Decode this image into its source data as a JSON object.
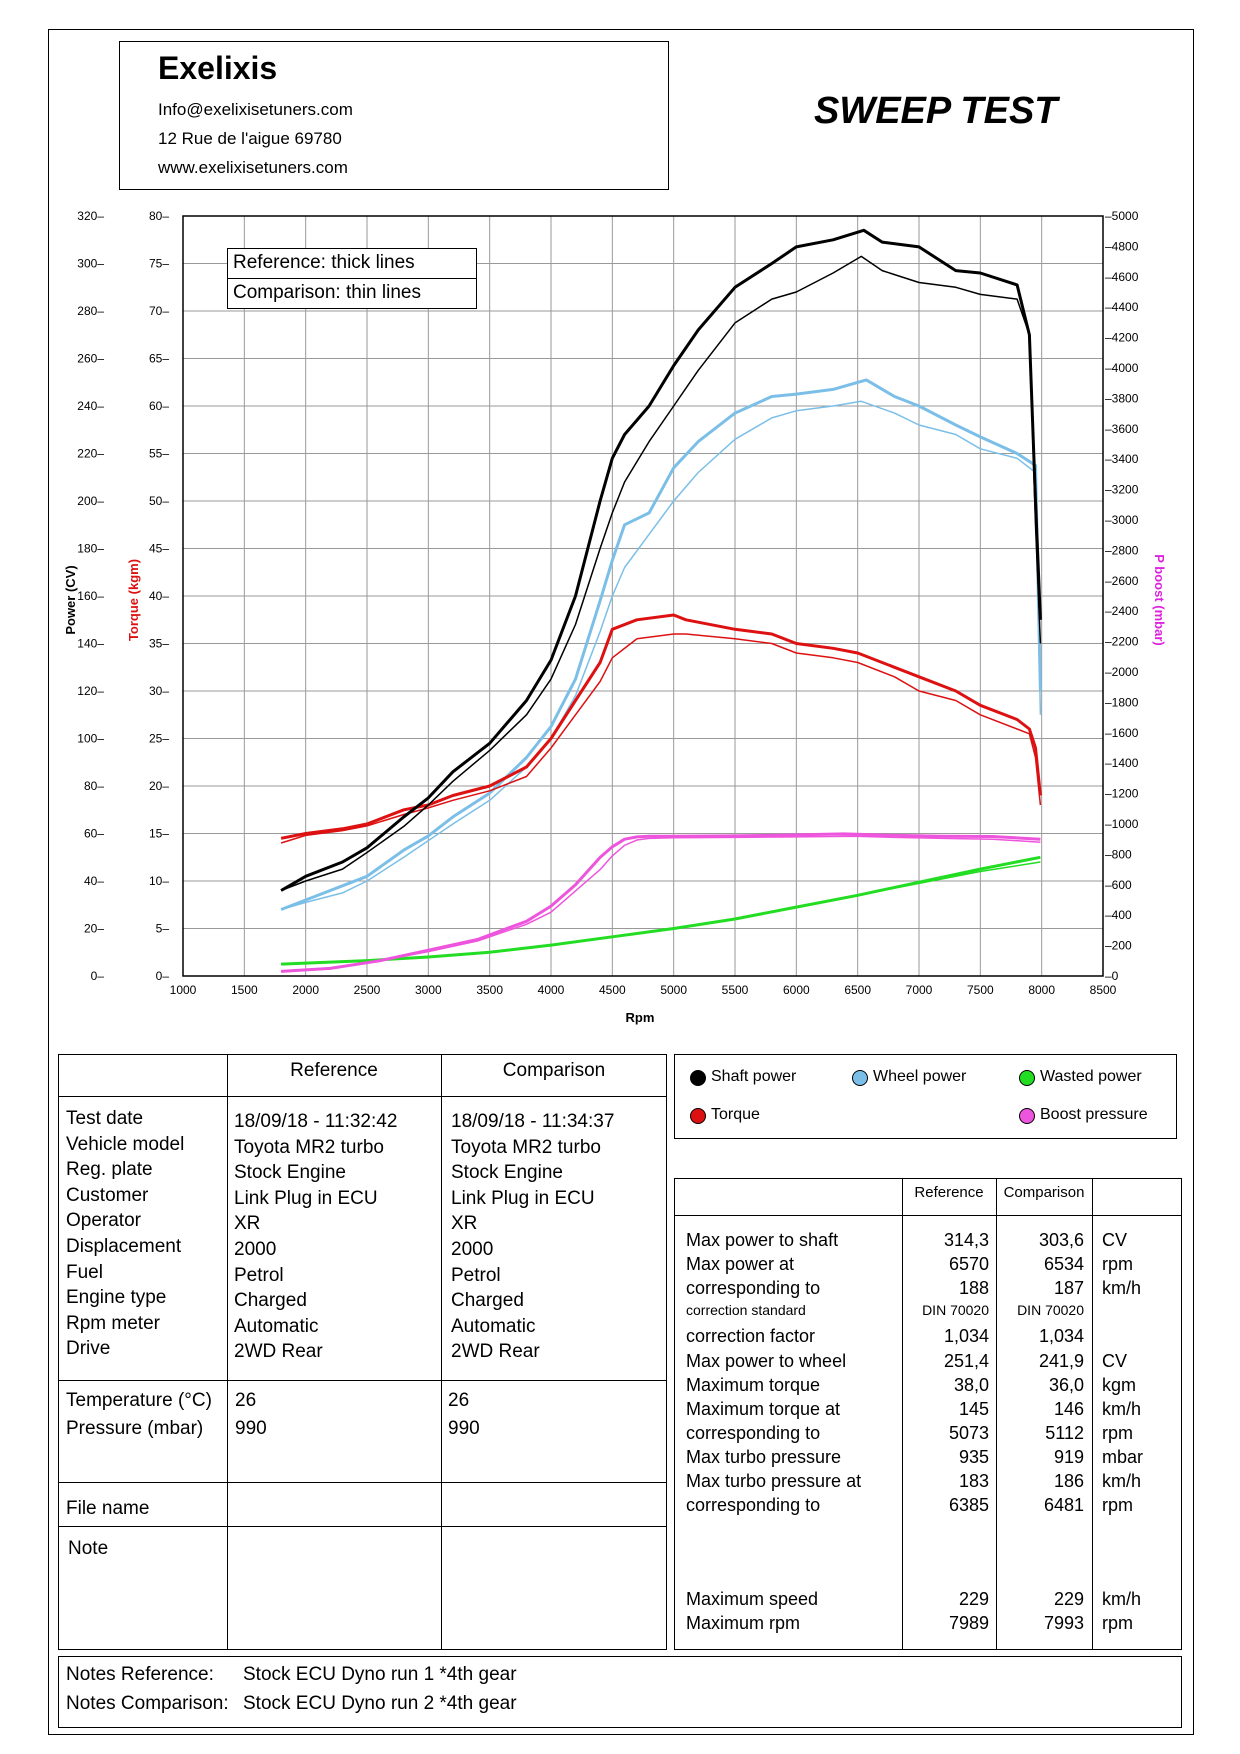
{
  "header": {
    "company": "Exelixis",
    "email": "Info@exelixisetuners.com",
    "address": "12 Rue de l'aigue 69780",
    "website": "www.exelixisetuners.com",
    "title": "SWEEP TEST"
  },
  "chart_legend": {
    "reference": "Reference: thick lines",
    "comparison": "Comparison: thin lines"
  },
  "colors": {
    "shaft": "#000000",
    "wheel": "#7bbfe8",
    "wasted": "#22dd22",
    "torque": "#dd1111",
    "boost": "#ee55dd"
  },
  "chart_data": {
    "type": "line",
    "xlabel": "Rpm",
    "y_left_outer_label": "Power (CV)",
    "y_left_inner_label": "Torque (kgm)",
    "y_right_label": "P boost (mbar)",
    "xlim": [
      1000,
      8500
    ],
    "power_ylim": [
      0,
      320
    ],
    "torque_ylim": [
      0,
      80
    ],
    "boost_ylim": [
      0,
      5000
    ],
    "x_ticks": [
      "1000",
      "1500",
      "2000",
      "2500",
      "3000",
      "3500",
      "4000",
      "4500",
      "5000",
      "5500",
      "6000",
      "6500",
      "7000",
      "7500",
      "8000",
      "8500"
    ],
    "power_ticks": [
      "0",
      "20",
      "40",
      "60",
      "80",
      "100",
      "120",
      "140",
      "160",
      "180",
      "200",
      "220",
      "240",
      "260",
      "280",
      "300",
      "320"
    ],
    "torque_ticks": [
      "0",
      "5",
      "10",
      "15",
      "20",
      "25",
      "30",
      "35",
      "40",
      "45",
      "50",
      "55",
      "60",
      "65",
      "70",
      "75",
      "80"
    ],
    "boost_ticks": [
      "0",
      "200",
      "400",
      "600",
      "800",
      "1000",
      "1200",
      "1400",
      "1600",
      "1800",
      "2000",
      "2200",
      "2400",
      "2600",
      "2800",
      "3000",
      "3200",
      "3400",
      "3600",
      "3800",
      "4000",
      "4200",
      "4400",
      "4600",
      "4800",
      "5000"
    ],
    "series": [
      {
        "name": "Shaft power",
        "key": "shaft",
        "axis": "power",
        "run": "reference",
        "x": [
          1800,
          2000,
          2300,
          2500,
          2800,
          3000,
          3200,
          3500,
          3800,
          4000,
          4200,
          4400,
          4500,
          4600,
          4800,
          5000,
          5200,
          5500,
          5800,
          6000,
          6300,
          6550,
          6700,
          7000,
          7300,
          7500,
          7800,
          7900,
          7950,
          7990
        ],
        "y": [
          36,
          42,
          48,
          54,
          67,
          75,
          86,
          98,
          116,
          133,
          160,
          200,
          218,
          228,
          240,
          257,
          272,
          290,
          300,
          307,
          310,
          314,
          309,
          307,
          297,
          296,
          291,
          270,
          200,
          150
        ]
      },
      {
        "name": "Shaft power",
        "key": "shaft",
        "axis": "power",
        "run": "comparison",
        "x": [
          1800,
          2000,
          2300,
          2500,
          2800,
          3000,
          3200,
          3500,
          3800,
          4000,
          4200,
          4400,
          4500,
          4600,
          4800,
          5000,
          5200,
          5500,
          5800,
          6000,
          6300,
          6530,
          6700,
          7000,
          7300,
          7500,
          7800,
          7900,
          7950,
          7990
        ],
        "y": [
          36,
          40,
          45,
          52,
          63,
          72,
          82,
          95,
          110,
          125,
          148,
          180,
          195,
          208,
          225,
          240,
          255,
          275,
          285,
          288,
          296,
          303,
          297,
          292,
          290,
          287,
          285,
          270,
          190,
          140
        ]
      },
      {
        "name": "Wheel power",
        "key": "wheel",
        "axis": "power",
        "run": "reference",
        "x": [
          1800,
          2000,
          2300,
          2500,
          2800,
          3000,
          3200,
          3500,
          3800,
          4000,
          4200,
          4400,
          4500,
          4600,
          4800,
          5000,
          5200,
          5500,
          5800,
          6000,
          6300,
          6570,
          6800,
          7000,
          7300,
          7500,
          7800,
          7950,
          7990
        ],
        "y": [
          28,
          32,
          38,
          42,
          53,
          59,
          67,
          77,
          92,
          105,
          125,
          158,
          175,
          190,
          195,
          214,
          225,
          237,
          244,
          245,
          247,
          251,
          244,
          240,
          232,
          227,
          220,
          215,
          120
        ]
      },
      {
        "name": "Wheel power",
        "key": "wheel",
        "axis": "power",
        "run": "comparison",
        "x": [
          1800,
          2000,
          2300,
          2500,
          2800,
          3000,
          3200,
          3500,
          3800,
          4000,
          4200,
          4400,
          4500,
          4600,
          4800,
          5000,
          5200,
          5500,
          5800,
          6000,
          6300,
          6530,
          6800,
          7000,
          7300,
          7500,
          7800,
          7950,
          7990
        ],
        "y": [
          28,
          31,
          35,
          40,
          50,
          57,
          64,
          74,
          88,
          100,
          118,
          145,
          160,
          172,
          186,
          200,
          212,
          226,
          235,
          238,
          240,
          242,
          237,
          232,
          228,
          222,
          218,
          212,
          110
        ]
      },
      {
        "name": "Torque",
        "key": "torque",
        "axis": "torque",
        "run": "reference",
        "x": [
          1800,
          2000,
          2300,
          2500,
          2800,
          3000,
          3200,
          3500,
          3800,
          4000,
          4200,
          4400,
          4500,
          4700,
          5000,
          5100,
          5500,
          5800,
          6000,
          6300,
          6500,
          6800,
          7000,
          7300,
          7500,
          7800,
          7900,
          7950,
          7990
        ],
        "y": [
          14.5,
          15,
          15.5,
          16,
          17.5,
          18,
          19,
          20,
          22,
          25,
          29,
          33,
          36.5,
          37.5,
          38,
          37.5,
          36.5,
          36,
          35,
          34.5,
          34,
          32.5,
          31.5,
          30,
          28.5,
          27,
          26,
          24,
          19
        ]
      },
      {
        "name": "Torque",
        "key": "torque",
        "axis": "torque",
        "run": "comparison",
        "x": [
          1800,
          2000,
          2300,
          2500,
          2800,
          3000,
          3200,
          3500,
          3800,
          4000,
          4200,
          4400,
          4500,
          4700,
          5000,
          5100,
          5500,
          5800,
          6000,
          6300,
          6500,
          6800,
          7000,
          7300,
          7500,
          7800,
          7900,
          7950,
          7990
        ],
        "y": [
          14,
          14.8,
          15.3,
          15.8,
          17,
          17.7,
          18.5,
          19.5,
          21,
          24,
          27.5,
          31,
          33.5,
          35.5,
          36,
          36,
          35.5,
          35,
          34,
          33.5,
          33,
          31.5,
          30,
          29,
          27.5,
          26,
          25.5,
          23,
          18
        ]
      },
      {
        "name": "Wasted power",
        "key": "wasted",
        "axis": "power",
        "run": "reference",
        "x": [
          1800,
          2500,
          3000,
          3500,
          4000,
          4500,
          5000,
          5500,
          6000,
          6500,
          7000,
          7500,
          7990
        ],
        "y": [
          5,
          6.5,
          8,
          10,
          13,
          16.5,
          20,
          24,
          29,
          34,
          39.5,
          45,
          50
        ]
      },
      {
        "name": "Wasted power",
        "key": "wasted",
        "axis": "power",
        "run": "comparison",
        "x": [
          1800,
          2500,
          3000,
          3500,
          4000,
          4500,
          5000,
          5500,
          6000,
          6500,
          7000,
          7500,
          7990
        ],
        "y": [
          5,
          6.5,
          8,
          10,
          13,
          16.5,
          20,
          24,
          29,
          34,
          39,
          44,
          48
        ]
      },
      {
        "name": "Boost pressure",
        "key": "boost",
        "axis": "boost",
        "run": "reference",
        "x": [
          1800,
          2200,
          2600,
          3000,
          3400,
          3800,
          4000,
          4200,
          4400,
          4500,
          4600,
          4700,
          4800,
          5000,
          5500,
          6000,
          6385,
          6800,
          7200,
          7600,
          7990
        ],
        "y": [
          30,
          50,
          100,
          170,
          240,
          360,
          460,
          600,
          780,
          850,
          900,
          915,
          920,
          920,
          922,
          928,
          935,
          925,
          920,
          918,
          900
        ]
      },
      {
        "name": "Boost pressure",
        "key": "boost",
        "axis": "boost",
        "run": "comparison",
        "x": [
          1800,
          2200,
          2600,
          3000,
          3400,
          3800,
          4000,
          4200,
          4400,
          4500,
          4600,
          4700,
          4800,
          5000,
          5500,
          6000,
          6481,
          6800,
          7200,
          7600,
          7990
        ],
        "y": [
          30,
          50,
          100,
          160,
          230,
          340,
          420,
          560,
          700,
          790,
          860,
          895,
          905,
          910,
          912,
          915,
          919,
          912,
          905,
          900,
          880
        ]
      }
    ]
  },
  "legend": {
    "shaft": "Shaft power",
    "wheel": "Wheel power",
    "wasted": "Wasted power",
    "torque": "Torque",
    "boost": "Boost pressure"
  },
  "info_table": {
    "col_reference": "Reference",
    "col_comparison": "Comparison",
    "labels": [
      "Test date",
      "Vehicle model",
      "Reg. plate",
      "Customer",
      "Operator",
      "Displacement",
      "Fuel",
      "Engine type",
      "Rpm meter",
      "Drive"
    ],
    "reference": [
      "18/09/18 - 11:32:42",
      "Toyota MR2 turbo",
      "Stock Engine",
      "Link Plug in ECU",
      "XR",
      "2000",
      "Petrol",
      "Charged",
      "Automatic",
      "2WD Rear"
    ],
    "comparison": [
      "18/09/18 - 11:34:37",
      "Toyota MR2 turbo",
      "Stock Engine",
      "Link Plug in ECU",
      "XR",
      "2000",
      "Petrol",
      "Charged",
      "Automatic",
      "2WD Rear"
    ],
    "env_labels": [
      "Temperature (°C)",
      "Pressure (mbar)"
    ],
    "env_reference": [
      "26",
      "990"
    ],
    "env_comparison": [
      "26",
      "990"
    ],
    "file_name_label": "File name",
    "note_label": "Note"
  },
  "results_table": {
    "col_reference": "Reference",
    "col_comparison": "Comparison",
    "rows": [
      {
        "label": "Max power to shaft",
        "ref": "314,3",
        "cmp": "303,6",
        "unit": "CV"
      },
      {
        "label": "Max power at",
        "ref": "6570",
        "cmp": "6534",
        "unit": "rpm"
      },
      {
        "label": "corresponding to",
        "ref": "188",
        "cmp": "187",
        "unit": "km/h"
      },
      {
        "label": "correction standard",
        "ref": "DIN 70020",
        "cmp": "DIN 70020",
        "unit": "",
        "small": true
      },
      {
        "label": "correction factor",
        "ref": "1,034",
        "cmp": "1,034",
        "unit": ""
      },
      {
        "label": "Max power to wheel",
        "ref": "251,4",
        "cmp": "241,9",
        "unit": "CV"
      },
      {
        "label": "Maximum torque",
        "ref": "38,0",
        "cmp": "36,0",
        "unit": "kgm"
      },
      {
        "label": "Maximum torque at",
        "ref": "145",
        "cmp": "146",
        "unit": "km/h"
      },
      {
        "label": "corresponding to",
        "ref": "5073",
        "cmp": "5112",
        "unit": "rpm"
      },
      {
        "label": "Max turbo pressure",
        "ref": "935",
        "cmp": "919",
        "unit": "mbar"
      },
      {
        "label": "Max turbo pressure at",
        "ref": "183",
        "cmp": "186",
        "unit": "km/h"
      },
      {
        "label": "corresponding to",
        "ref": "6385",
        "cmp": "6481",
        "unit": "rpm"
      }
    ],
    "bottom_rows": [
      {
        "label": "Maximum speed",
        "ref": "229",
        "cmp": "229",
        "unit": "km/h"
      },
      {
        "label": "Maximum rpm",
        "ref": "7989",
        "cmp": "7993",
        "unit": "rpm"
      }
    ]
  },
  "notes": {
    "ref_label": "Notes Reference:",
    "ref_text": "Stock ECU Dyno run 1 *4th gear",
    "cmp_label": "Notes Comparison:",
    "cmp_text": "Stock ECU Dyno run 2 *4th gear"
  }
}
